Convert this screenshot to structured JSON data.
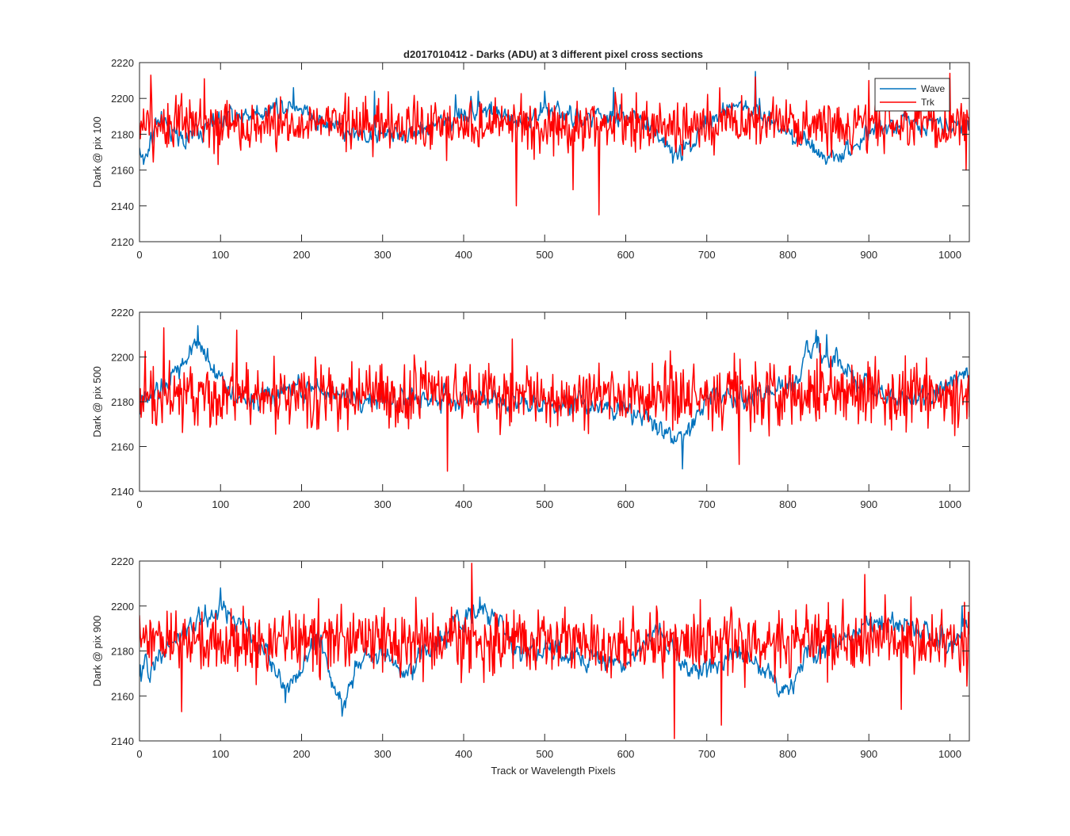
{
  "title": "d2017010412 - Darks (ADU) at 3 different pixel cross sections",
  "xlabel": "Track or Wavelength Pixels",
  "colors": {
    "Wave": "#0072BD",
    "Trk": "#FF0000",
    "axis": "#262626",
    "background": "#ffffff"
  },
  "legend": {
    "placement": "top-right",
    "entries": [
      "Wave",
      "Trk"
    ]
  },
  "chart_data": [
    {
      "type": "line",
      "ylabel": "Dark @ pix 100",
      "xlim": [
        0,
        1024
      ],
      "ylim": [
        2120,
        2220
      ],
      "xticks": [
        0,
        100,
        200,
        300,
        400,
        500,
        600,
        700,
        800,
        900,
        1000
      ],
      "yticks": [
        2120,
        2140,
        2160,
        2180,
        2200,
        2220
      ],
      "grid": false,
      "series": [
        {
          "name": "Wave",
          "mean": 2184,
          "noise": 6,
          "anchors": [
            [
              0,
              2172
            ],
            [
              5,
              2164
            ],
            [
              20,
              2186
            ],
            [
              60,
              2178
            ],
            [
              100,
              2188
            ],
            [
              140,
              2192
            ],
            [
              190,
              2198
            ],
            [
              230,
              2186
            ],
            [
              270,
              2180
            ],
            [
              330,
              2180
            ],
            [
              380,
              2188
            ],
            [
              420,
              2196
            ],
            [
              460,
              2186
            ],
            [
              500,
              2194
            ],
            [
              540,
              2188
            ],
            [
              600,
              2190
            ],
            [
              640,
              2182
            ],
            [
              660,
              2166
            ],
            [
              700,
              2188
            ],
            [
              740,
              2196
            ],
            [
              770,
              2190
            ],
            [
              800,
              2182
            ],
            [
              860,
              2166
            ],
            [
              900,
              2182
            ],
            [
              950,
              2186
            ],
            [
              1000,
              2188
            ],
            [
              1024,
              2184
            ]
          ],
          "spikes": [
            [
              190,
              2206
            ],
            [
              290,
              2204
            ],
            [
              390,
              2202
            ],
            [
              418,
              2204
            ],
            [
              500,
              2204
            ],
            [
              585,
              2206
            ],
            [
              760,
              2215
            ],
            [
              765,
              2200
            ]
          ]
        },
        {
          "name": "Trk",
          "mean": 2185,
          "noise": 10,
          "anchors": [
            [
              0,
              2185
            ],
            [
              1024,
              2185
            ]
          ],
          "spikes": [
            [
              14,
              2213
            ],
            [
              80,
              2211
            ],
            [
              465,
              2140
            ],
            [
              535,
              2149
            ],
            [
              567,
              2135
            ],
            [
              760,
              2212
            ],
            [
              900,
              2210
            ],
            [
              1000,
              2214
            ],
            [
              1020,
              2160
            ]
          ]
        }
      ]
    },
    {
      "type": "line",
      "ylabel": "Dark @ pix 500",
      "xlim": [
        0,
        1024
      ],
      "ylim": [
        2140,
        2220
      ],
      "xticks": [
        0,
        100,
        200,
        300,
        400,
        500,
        600,
        700,
        800,
        900,
        1000
      ],
      "yticks": [
        2140,
        2160,
        2180,
        2200,
        2220
      ],
      "grid": false,
      "series": [
        {
          "name": "Wave",
          "mean": 2182,
          "noise": 5,
          "anchors": [
            [
              0,
              2178
            ],
            [
              30,
              2186
            ],
            [
              60,
              2200
            ],
            [
              75,
              2206
            ],
            [
              95,
              2192
            ],
            [
              130,
              2180
            ],
            [
              200,
              2186
            ],
            [
              300,
              2180
            ],
            [
              400,
              2182
            ],
            [
              500,
              2180
            ],
            [
              600,
              2178
            ],
            [
              670,
              2162
            ],
            [
              700,
              2182
            ],
            [
              800,
              2184
            ],
            [
              830,
              2204
            ],
            [
              850,
              2200
            ],
            [
              870,
              2192
            ],
            [
              900,
              2186
            ],
            [
              950,
              2180
            ],
            [
              1000,
              2186
            ],
            [
              1024,
              2192
            ]
          ],
          "spikes": [
            [
              72,
              2214
            ],
            [
              670,
              2150
            ],
            [
              835,
              2212
            ],
            [
              848,
              2210
            ]
          ]
        },
        {
          "name": "Trk",
          "mean": 2183,
          "noise": 10,
          "anchors": [
            [
              0,
              2183
            ],
            [
              1024,
              2183
            ]
          ],
          "spikes": [
            [
              30,
              2213
            ],
            [
              120,
              2212
            ],
            [
              380,
              2149
            ],
            [
              460,
              2208
            ],
            [
              740,
              2152
            ],
            [
              840,
              2206
            ]
          ]
        }
      ]
    },
    {
      "type": "line",
      "ylabel": "Dark @ pix 900",
      "xlim": [
        0,
        1024
      ],
      "ylim": [
        2140,
        2220
      ],
      "xticks": [
        0,
        100,
        200,
        300,
        400,
        500,
        600,
        700,
        800,
        900,
        1000
      ],
      "yticks": [
        2140,
        2160,
        2180,
        2200,
        2220
      ],
      "grid": false,
      "xlabel": "Track or Wavelength Pixels",
      "series": [
        {
          "name": "Wave",
          "mean": 2182,
          "noise": 5,
          "anchors": [
            [
              0,
              2168
            ],
            [
              40,
              2184
            ],
            [
              100,
              2200
            ],
            [
              150,
              2182
            ],
            [
              185,
              2162
            ],
            [
              220,
              2186
            ],
            [
              250,
              2156
            ],
            [
              280,
              2180
            ],
            [
              330,
              2172
            ],
            [
              380,
              2188
            ],
            [
              420,
              2198
            ],
            [
              440,
              2194
            ],
            [
              470,
              2180
            ],
            [
              500,
              2180
            ],
            [
              600,
              2174
            ],
            [
              640,
              2190
            ],
            [
              680,
              2170
            ],
            [
              740,
              2180
            ],
            [
              800,
              2162
            ],
            [
              830,
              2180
            ],
            [
              900,
              2192
            ],
            [
              950,
              2190
            ],
            [
              1000,
              2182
            ],
            [
              1024,
              2190
            ]
          ],
          "spikes": [
            [
              100,
              2208
            ],
            [
              180,
              2157
            ],
            [
              250,
              2151
            ],
            [
              420,
              2204
            ],
            [
              1015,
              2200
            ]
          ]
        },
        {
          "name": "Trk",
          "mean": 2184,
          "noise": 10,
          "anchors": [
            [
              0,
              2184
            ],
            [
              1024,
              2184
            ]
          ],
          "spikes": [
            [
              52,
              2153
            ],
            [
              410,
              2219
            ],
            [
              660,
              2141
            ],
            [
              718,
              2147
            ],
            [
              895,
              2214
            ],
            [
              940,
              2154
            ]
          ]
        }
      ]
    }
  ]
}
